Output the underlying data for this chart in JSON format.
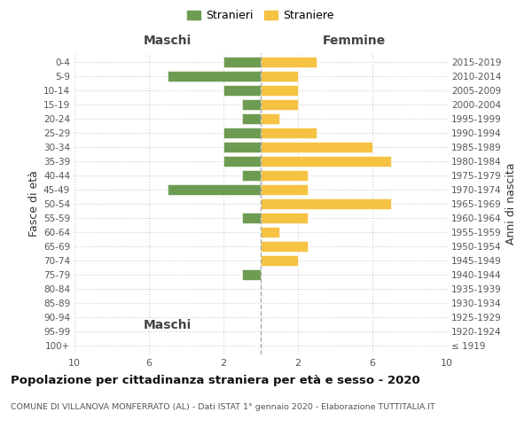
{
  "age_groups": [
    "100+",
    "95-99",
    "90-94",
    "85-89",
    "80-84",
    "75-79",
    "70-74",
    "65-69",
    "60-64",
    "55-59",
    "50-54",
    "45-49",
    "40-44",
    "35-39",
    "30-34",
    "25-29",
    "20-24",
    "15-19",
    "10-14",
    "5-9",
    "0-4"
  ],
  "birth_years": [
    "≤ 1919",
    "1920-1924",
    "1925-1929",
    "1930-1934",
    "1935-1939",
    "1940-1944",
    "1945-1949",
    "1950-1954",
    "1955-1959",
    "1960-1964",
    "1965-1969",
    "1970-1974",
    "1975-1979",
    "1980-1984",
    "1985-1989",
    "1990-1994",
    "1995-1999",
    "2000-2004",
    "2005-2009",
    "2010-2014",
    "2015-2019"
  ],
  "maschi": [
    0,
    0,
    0,
    0,
    0,
    1,
    0,
    0,
    0,
    1,
    0,
    5,
    1,
    2,
    2,
    2,
    1,
    1,
    2,
    5,
    2
  ],
  "femmine": [
    0,
    0,
    0,
    0,
    0,
    0,
    2,
    2.5,
    1,
    2.5,
    7,
    2.5,
    2.5,
    7,
    6,
    3,
    1,
    2,
    2,
    2,
    3
  ],
  "color_maschi": "#6d9b52",
  "color_femmine": "#f5c242",
  "title_bold": "Popolazione per cittadinanza straniera per età e sesso - 2020",
  "subtitle": "COMUNE DI VILLANOVA MONFERRATO (AL) - Dati ISTAT 1° gennaio 2020 - Elaborazione TUTTITALIA.IT",
  "label_maschi": "Maschi",
  "label_femmine": "Femmine",
  "legend_stranieri": "Stranieri",
  "legend_straniere": "Straniere",
  "ylabel_left": "Fasce di età",
  "ylabel_right": "Anni di nascita",
  "xlim": 10,
  "xticks": [
    10,
    6,
    2,
    2,
    6,
    10
  ],
  "background_color": "#ffffff",
  "grid_color": "#cccccc",
  "text_color": "#555555",
  "bar_height": 0.75
}
